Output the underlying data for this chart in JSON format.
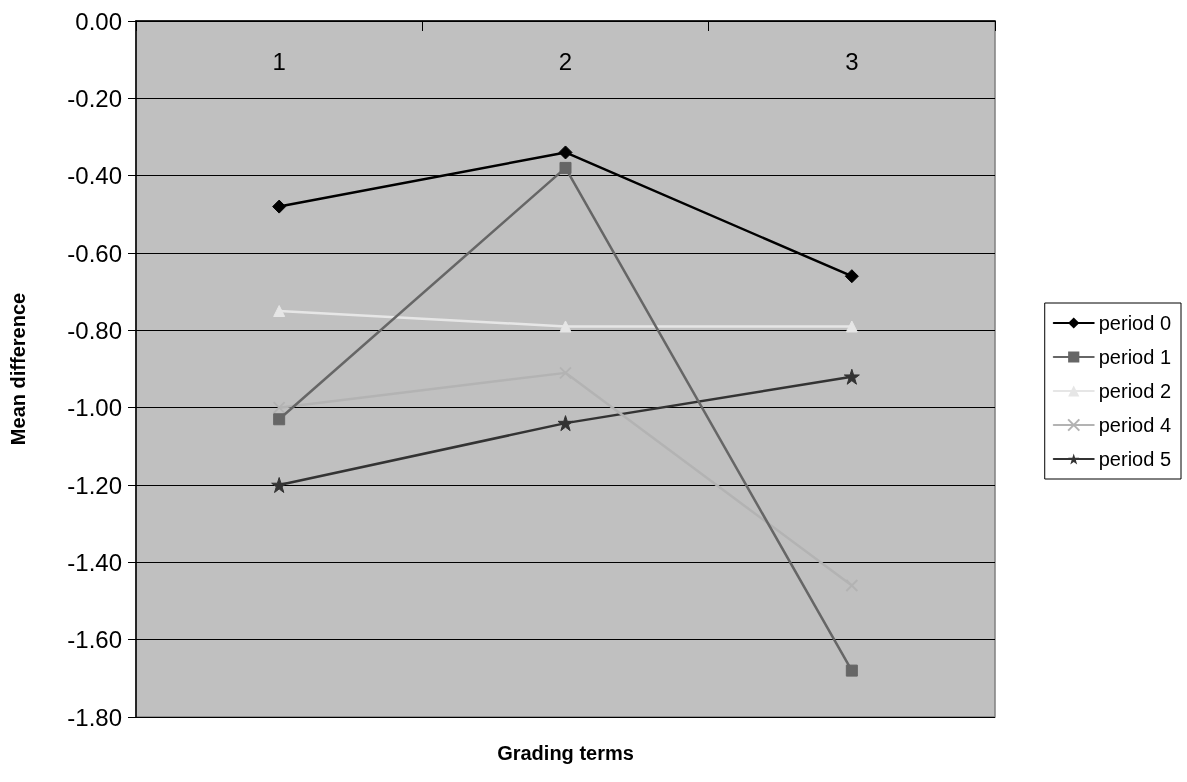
{
  "chart_data": {
    "type": "line",
    "xlabel": "Grading terms",
    "ylabel": "Mean difference",
    "categories": [
      "1",
      "2",
      "3"
    ],
    "series": [
      {
        "name": "period 0",
        "color": "#000000",
        "marker": "diamond",
        "values": [
          -0.48,
          -0.34,
          -0.66
        ]
      },
      {
        "name": "period 1",
        "color": "#666666",
        "marker": "square",
        "values": [
          -1.03,
          -0.38,
          -1.68
        ]
      },
      {
        "name": "period 2",
        "color": "#e6e6e6",
        "marker": "triangle",
        "values": [
          -0.75,
          -0.79,
          -0.79
        ]
      },
      {
        "name": "period 4",
        "color": "#b3b3b3",
        "marker": "cross",
        "values": [
          -1.0,
          -0.91,
          -1.46
        ]
      },
      {
        "name": "period 5",
        "color": "#333333",
        "marker": "star",
        "values": [
          -1.2,
          -1.04,
          -0.92
        ]
      }
    ],
    "ylim": [
      -1.8,
      0
    ],
    "yticks": [
      {
        "value": 0,
        "label": "0.00"
      },
      {
        "value": -0.2,
        "label": "-0.20"
      },
      {
        "value": -0.4,
        "label": "-0.40"
      },
      {
        "value": -0.6,
        "label": "-0.60"
      },
      {
        "value": -0.8,
        "label": "-0.80"
      },
      {
        "value": -1.0,
        "label": "-1.00"
      },
      {
        "value": -1.2,
        "label": "-1.20"
      },
      {
        "value": -1.4,
        "label": "-1.40"
      },
      {
        "value": -1.6,
        "label": "-1.60"
      },
      {
        "value": -1.8,
        "label": "-1.80"
      }
    ],
    "grid": "y",
    "legend": "right",
    "line_style": "solid"
  }
}
